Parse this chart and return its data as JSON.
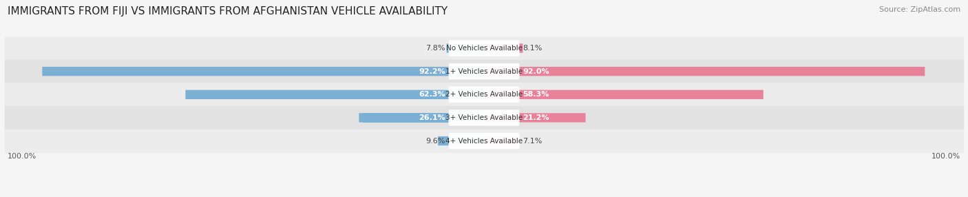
{
  "title": "IMMIGRANTS FROM FIJI VS IMMIGRANTS FROM AFGHANISTAN VEHICLE AVAILABILITY",
  "source": "Source: ZipAtlas.com",
  "categories": [
    "No Vehicles Available",
    "1+ Vehicles Available",
    "2+ Vehicles Available",
    "3+ Vehicles Available",
    "4+ Vehicles Available"
  ],
  "fiji_values": [
    7.8,
    92.2,
    62.3,
    26.1,
    9.6
  ],
  "afghanistan_values": [
    8.1,
    92.0,
    58.3,
    21.2,
    7.1
  ],
  "fiji_color": "#7bafd4",
  "afghanistan_color": "#e8829a",
  "fiji_label": "Immigrants from Fiji",
  "afghanistan_label": "Immigrants from Afghanistan",
  "max_value": 100.0,
  "title_fontsize": 11,
  "source_fontsize": 8,
  "bar_fontsize": 8,
  "axis_label": "100.0%",
  "row_bg_even": "#ececec",
  "row_bg_odd": "#e2e2e2",
  "fig_bg": "#f5f5f5"
}
